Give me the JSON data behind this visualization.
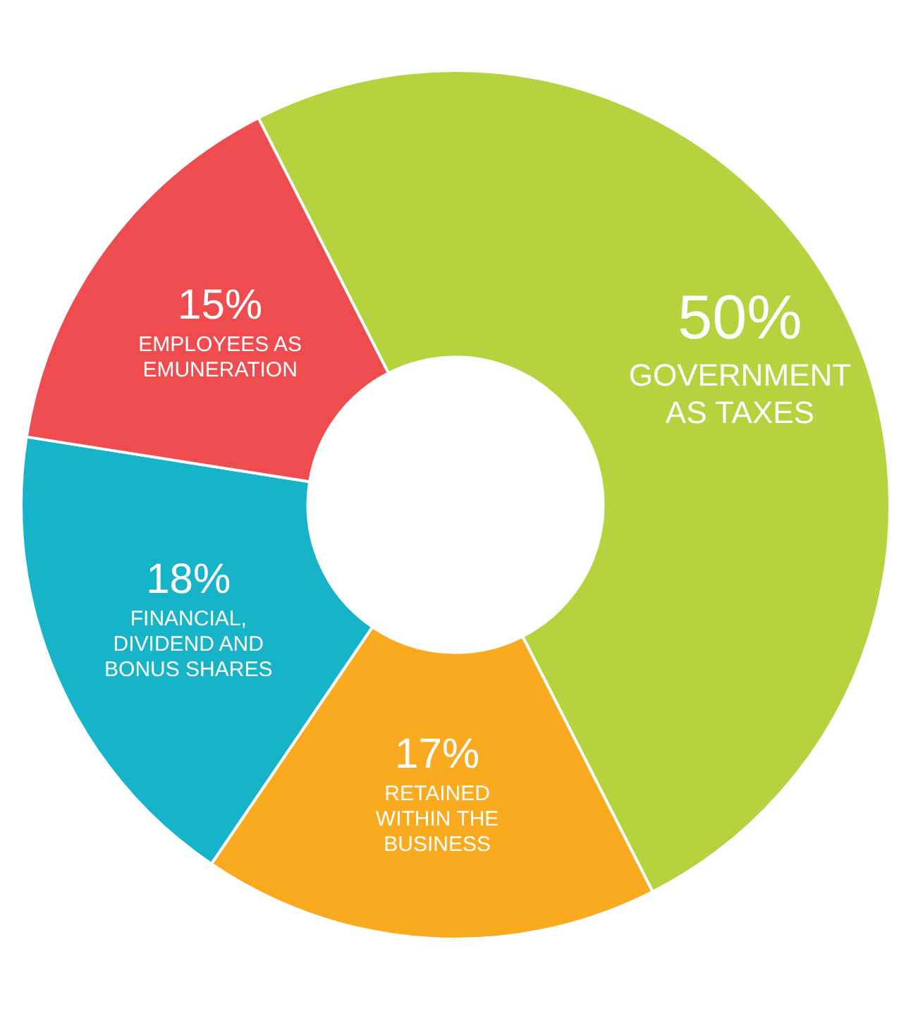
{
  "chart_data": {
    "type": "donut",
    "categories": [
      "GOVERNMENT AS TAXES",
      "RETAINED WITHIN THE BUSINESS",
      "FINANCIAL, DIVIDEND AND BONUS SHARES",
      "EMPLOYEES AS EMUNERATION"
    ],
    "values": [
      50,
      17,
      18,
      15
    ],
    "colors": [
      "#b5d33f",
      "#f9aa1f",
      "#16b3c9",
      "#ef4c50"
    ],
    "value_labels": [
      "50%",
      "17%",
      "18%",
      "15%"
    ],
    "legend": false
  }
}
